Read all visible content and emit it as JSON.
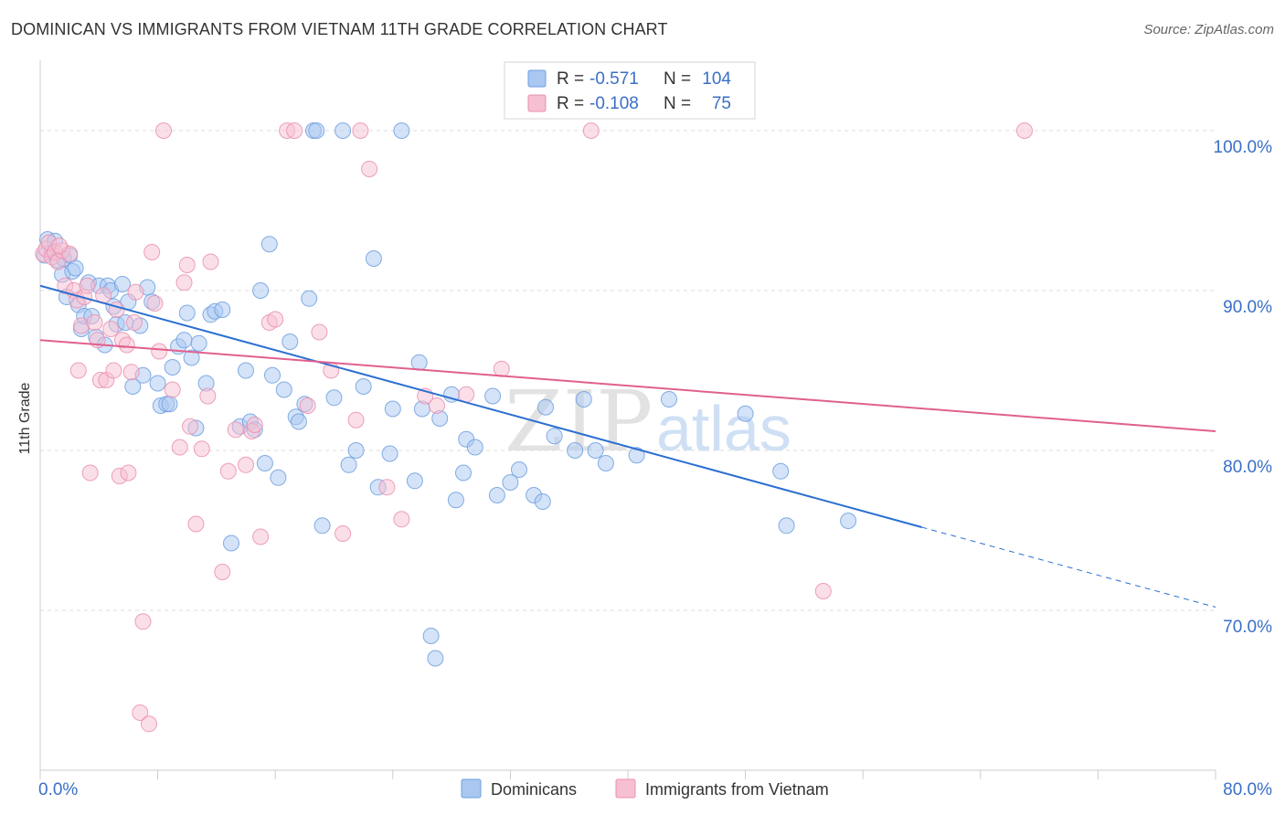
{
  "header": {
    "title": "DOMINICAN VS IMMIGRANTS FROM VIETNAM 11TH GRADE CORRELATION CHART",
    "source": "Source: ZipAtlas.com"
  },
  "watermark": {
    "zip": "ZIP",
    "atlas": "atlas"
  },
  "colors": {
    "dominicans_fill": "#a9c7f1",
    "dominicans_stroke": "#6e9fe0",
    "dominicans_line": "#2b6fd0",
    "vietnam_fill": "#f7bfd2",
    "vietnam_stroke": "#ea8fb0",
    "vietnam_line": "#e0608e",
    "value_text": "#3a6fc6",
    "grid": "#dddddd"
  },
  "chart_data": {
    "type": "scatter",
    "ylabel": "11th Grade",
    "xlim": [
      0,
      80
    ],
    "ylim": [
      60,
      104
    ],
    "x_tick_labels": [
      {
        "value": 0,
        "label": "0.0%"
      },
      {
        "value": 80,
        "label": "80.0%"
      }
    ],
    "y_tick_labels": [
      {
        "value": 100,
        "label": "100.0%"
      },
      {
        "value": 90,
        "label": "90.0%"
      },
      {
        "value": 80,
        "label": "80.0%"
      },
      {
        "value": 70,
        "label": "70.0%"
      }
    ],
    "grid": true,
    "legend_top": [
      {
        "r_label": "R =",
        "r_value": "-0.571",
        "n_label": "N =",
        "n_value": "104"
      },
      {
        "r_label": "R =",
        "r_value": "-0.108",
        "n_label": "N =",
        "n_value": "75"
      }
    ],
    "series": [
      {
        "name": "Dominicans",
        "trend": {
          "x0": 0,
          "y0": 90.3,
          "x1": 60,
          "y1": 75.2,
          "dash_to_x": 80,
          "dash_to_y": 70.2
        },
        "points": [
          [
            0.3,
            92.2
          ],
          [
            0.5,
            93.2
          ],
          [
            0.8,
            92.4
          ],
          [
            1.0,
            93.1
          ],
          [
            1.2,
            91.9
          ],
          [
            1.5,
            91.0
          ],
          [
            1.6,
            92.0
          ],
          [
            1.8,
            89.6
          ],
          [
            2.0,
            92.2
          ],
          [
            2.2,
            91.2
          ],
          [
            2.4,
            91.4
          ],
          [
            2.6,
            89.1
          ],
          [
            2.8,
            87.6
          ],
          [
            3.0,
            88.4
          ],
          [
            3.3,
            90.5
          ],
          [
            3.5,
            88.4
          ],
          [
            3.8,
            87.1
          ],
          [
            4.0,
            90.3
          ],
          [
            4.4,
            86.6
          ],
          [
            4.6,
            90.3
          ],
          [
            4.8,
            90.0
          ],
          [
            5.0,
            89.0
          ],
          [
            5.2,
            87.9
          ],
          [
            5.6,
            90.4
          ],
          [
            5.8,
            88.0
          ],
          [
            6.0,
            89.3
          ],
          [
            6.3,
            84.0
          ],
          [
            6.8,
            87.8
          ],
          [
            7.0,
            84.7
          ],
          [
            7.3,
            90.2
          ],
          [
            7.6,
            89.3
          ],
          [
            8.0,
            84.2
          ],
          [
            8.2,
            82.8
          ],
          [
            8.6,
            82.9
          ],
          [
            8.8,
            82.9
          ],
          [
            9.0,
            85.2
          ],
          [
            9.4,
            86.5
          ],
          [
            9.8,
            86.9
          ],
          [
            10.0,
            88.6
          ],
          [
            10.3,
            85.8
          ],
          [
            10.6,
            81.4
          ],
          [
            10.8,
            86.7
          ],
          [
            11.3,
            84.2
          ],
          [
            11.6,
            88.5
          ],
          [
            11.9,
            88.7
          ],
          [
            12.4,
            88.8
          ],
          [
            13.0,
            74.2
          ],
          [
            13.6,
            81.5
          ],
          [
            14.0,
            85.0
          ],
          [
            14.3,
            81.8
          ],
          [
            14.6,
            81.3
          ],
          [
            15.0,
            90.0
          ],
          [
            15.3,
            79.2
          ],
          [
            15.6,
            92.9
          ],
          [
            15.8,
            84.7
          ],
          [
            16.2,
            78.3
          ],
          [
            16.6,
            83.8
          ],
          [
            17.0,
            86.8
          ],
          [
            17.4,
            82.1
          ],
          [
            17.6,
            81.8
          ],
          [
            18.0,
            82.9
          ],
          [
            18.3,
            89.5
          ],
          [
            18.6,
            100.0
          ],
          [
            18.8,
            100.0
          ],
          [
            19.2,
            75.3
          ],
          [
            20.0,
            83.3
          ],
          [
            20.6,
            100.0
          ],
          [
            21.0,
            79.1
          ],
          [
            21.5,
            80.0
          ],
          [
            22.0,
            84.0
          ],
          [
            22.7,
            92.0
          ],
          [
            23.0,
            77.7
          ],
          [
            23.8,
            79.8
          ],
          [
            24.0,
            82.6
          ],
          [
            24.6,
            100.0
          ],
          [
            25.5,
            78.1
          ],
          [
            25.8,
            85.5
          ],
          [
            26.0,
            82.6
          ],
          [
            26.6,
            68.4
          ],
          [
            26.9,
            67.0
          ],
          [
            28.0,
            83.5
          ],
          [
            28.3,
            76.9
          ],
          [
            28.8,
            78.6
          ],
          [
            29.0,
            80.7
          ],
          [
            29.6,
            80.2
          ],
          [
            30.8,
            83.4
          ],
          [
            32.0,
            78.0
          ],
          [
            32.6,
            78.8
          ],
          [
            33.6,
            77.2
          ],
          [
            34.2,
            76.8
          ],
          [
            34.4,
            82.7
          ],
          [
            36.4,
            80.0
          ],
          [
            37.0,
            83.2
          ],
          [
            37.8,
            80.0
          ],
          [
            38.5,
            79.2
          ],
          [
            40.6,
            79.7
          ],
          [
            42.8,
            83.2
          ],
          [
            48.0,
            82.3
          ],
          [
            50.4,
            78.7
          ],
          [
            50.8,
            75.3
          ],
          [
            55.0,
            75.6
          ],
          [
            35.0,
            80.9
          ],
          [
            31.1,
            77.2
          ],
          [
            27.2,
            82.0
          ]
        ]
      },
      {
        "name": "Immigrants from Vietnam",
        "trend": {
          "x0": 0,
          "y0": 86.9,
          "x1": 80,
          "y1": 81.2
        },
        "points": [
          [
            0.2,
            92.3
          ],
          [
            0.4,
            92.6
          ],
          [
            0.6,
            93.0
          ],
          [
            0.8,
            92.1
          ],
          [
            1.0,
            92.4
          ],
          [
            1.2,
            91.8
          ],
          [
            1.5,
            92.5
          ],
          [
            1.7,
            90.3
          ],
          [
            2.0,
            92.3
          ],
          [
            2.3,
            90.0
          ],
          [
            2.5,
            89.4
          ],
          [
            2.6,
            85.0
          ],
          [
            2.8,
            87.8
          ],
          [
            3.0,
            89.6
          ],
          [
            3.2,
            90.3
          ],
          [
            3.4,
            78.6
          ],
          [
            3.7,
            88.0
          ],
          [
            3.9,
            86.9
          ],
          [
            4.1,
            84.4
          ],
          [
            4.3,
            89.7
          ],
          [
            4.5,
            84.4
          ],
          [
            4.8,
            87.6
          ],
          [
            5.0,
            85.0
          ],
          [
            5.2,
            88.8
          ],
          [
            5.4,
            78.4
          ],
          [
            5.6,
            86.9
          ],
          [
            5.9,
            86.6
          ],
          [
            6.0,
            78.6
          ],
          [
            6.2,
            84.9
          ],
          [
            6.4,
            88.0
          ],
          [
            6.8,
            63.6
          ],
          [
            7.0,
            69.3
          ],
          [
            7.4,
            62.9
          ],
          [
            7.6,
            92.4
          ],
          [
            7.8,
            89.2
          ],
          [
            8.1,
            86.2
          ],
          [
            8.4,
            100.0
          ],
          [
            9.0,
            83.8
          ],
          [
            9.5,
            80.2
          ],
          [
            9.8,
            90.5
          ],
          [
            10.2,
            81.5
          ],
          [
            10.6,
            75.4
          ],
          [
            11.0,
            80.1
          ],
          [
            11.4,
            83.4
          ],
          [
            11.6,
            91.8
          ],
          [
            12.4,
            72.4
          ],
          [
            12.8,
            78.7
          ],
          [
            13.3,
            81.3
          ],
          [
            14.0,
            79.1
          ],
          [
            14.4,
            81.2
          ],
          [
            14.6,
            81.6
          ],
          [
            15.0,
            74.6
          ],
          [
            15.6,
            88.0
          ],
          [
            16.0,
            88.2
          ],
          [
            16.8,
            100.0
          ],
          [
            17.3,
            100.0
          ],
          [
            18.2,
            82.8
          ],
          [
            19.0,
            87.4
          ],
          [
            19.8,
            85.0
          ],
          [
            20.6,
            74.8
          ],
          [
            21.5,
            81.9
          ],
          [
            21.8,
            100.0
          ],
          [
            22.4,
            97.6
          ],
          [
            23.6,
            77.7
          ],
          [
            24.6,
            75.7
          ],
          [
            26.2,
            83.4
          ],
          [
            27.0,
            82.8
          ],
          [
            29.0,
            83.5
          ],
          [
            31.4,
            85.1
          ],
          [
            37.5,
            100.0
          ],
          [
            53.3,
            71.2
          ],
          [
            67.0,
            100.0
          ],
          [
            10.0,
            91.6
          ],
          [
            6.5,
            89.9
          ],
          [
            1.3,
            92.8
          ]
        ]
      }
    ]
  }
}
